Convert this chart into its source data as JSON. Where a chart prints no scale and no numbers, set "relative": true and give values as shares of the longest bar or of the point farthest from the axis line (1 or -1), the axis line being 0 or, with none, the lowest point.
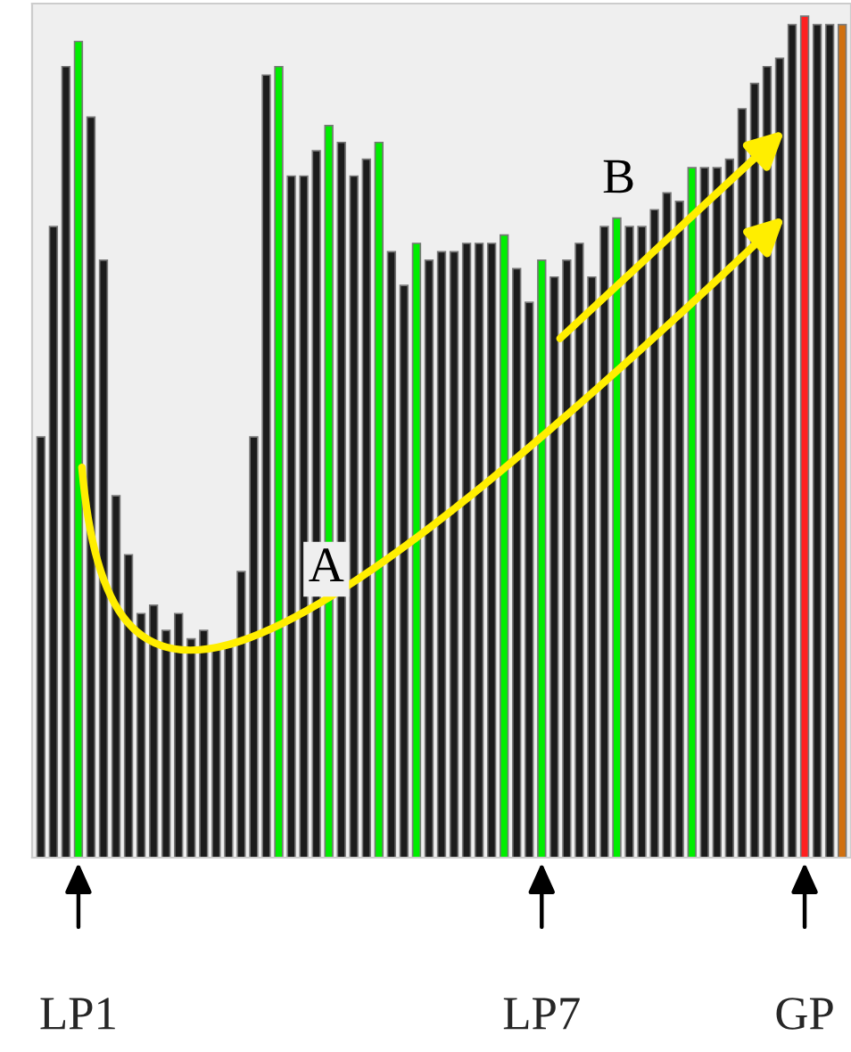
{
  "chart_data": {
    "type": "bar",
    "relative": true,
    "categories": [
      null,
      null,
      null,
      "LP1",
      null,
      null,
      null,
      null,
      null,
      null,
      null,
      null,
      null,
      null,
      null,
      null,
      null,
      null,
      null,
      null,
      null,
      null,
      null,
      null,
      null,
      null,
      null,
      null,
      null,
      null,
      null,
      null,
      null,
      null,
      null,
      null,
      null,
      null,
      null,
      null,
      "LP7",
      null,
      null,
      null,
      null,
      null,
      null,
      null,
      null,
      null,
      null,
      null,
      null,
      null,
      null,
      null,
      null,
      null,
      null,
      null,
      null,
      "GP",
      null,
      null,
      null
    ],
    "values": [
      0.5,
      0.75,
      0.94,
      0.97,
      0.88,
      0.71,
      0.43,
      0.36,
      0.29,
      0.3,
      0.27,
      0.29,
      0.26,
      0.27,
      0.25,
      0.25,
      0.34,
      0.5,
      0.93,
      0.94,
      0.81,
      0.81,
      0.84,
      0.87,
      0.85,
      0.81,
      0.83,
      0.85,
      0.72,
      0.68,
      0.73,
      0.71,
      0.72,
      0.72,
      0.73,
      0.73,
      0.73,
      0.74,
      0.7,
      0.66,
      0.71,
      0.69,
      0.71,
      0.73,
      0.69,
      0.75,
      0.76,
      0.75,
      0.75,
      0.77,
      0.79,
      0.78,
      0.82,
      0.82,
      0.82,
      0.83,
      0.89,
      0.92,
      0.94,
      0.95,
      0.99,
      1,
      0.99,
      0.99,
      0.99
    ],
    "colors": [
      "#1c1c1c",
      "#1c1c1c",
      "#1c1c1c",
      "#00ee00",
      "#1c1c1c",
      "#1c1c1c",
      "#1c1c1c",
      "#1c1c1c",
      "#1c1c1c",
      "#1c1c1c",
      "#1c1c1c",
      "#1c1c1c",
      "#1c1c1c",
      "#1c1c1c",
      "#1c1c1c",
      "#1c1c1c",
      "#1c1c1c",
      "#1c1c1c",
      "#1c1c1c",
      "#00ee00",
      "#1c1c1c",
      "#1c1c1c",
      "#1c1c1c",
      "#00ee00",
      "#1c1c1c",
      "#1c1c1c",
      "#1c1c1c",
      "#00ee00",
      "#1c1c1c",
      "#1c1c1c",
      "#00ee00",
      "#1c1c1c",
      "#1c1c1c",
      "#1c1c1c",
      "#1c1c1c",
      "#1c1c1c",
      "#1c1c1c",
      "#00ee00",
      "#1c1c1c",
      "#1c1c1c",
      "#00ee00",
      "#1c1c1c",
      "#1c1c1c",
      "#1c1c1c",
      "#1c1c1c",
      "#1c1c1c",
      "#00ee00",
      "#1c1c1c",
      "#1c1c1c",
      "#1c1c1c",
      "#1c1c1c",
      "#1c1c1c",
      "#00ee00",
      "#1c1c1c",
      "#1c1c1c",
      "#1c1c1c",
      "#1c1c1c",
      "#1c1c1c",
      "#1c1c1c",
      "#1c1c1c",
      "#1c1c1c",
      "#ff2020",
      "#1c1c1c",
      "#1c1c1c",
      "#d07010"
    ],
    "annotations": [
      "A",
      "B"
    ]
  }
}
